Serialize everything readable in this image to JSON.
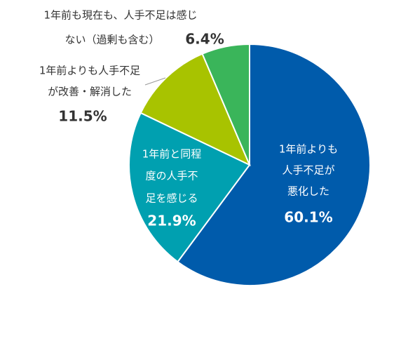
{
  "chart_data": {
    "type": "pie",
    "categories": [
      [
        "1年前よりも",
        "人手不足が",
        "悪化した"
      ],
      [
        "1年前と同程",
        "度の人手不",
        "足を感じる"
      ],
      [
        "1年前よりも人手不足",
        "が改善・解消した"
      ],
      [
        "1年前も現在も、人手不足は感じ",
        "ない（過剰も含む）"
      ]
    ],
    "values": [
      60.1,
      21.9,
      11.5,
      6.4
    ],
    "value_labels": [
      "60.1%",
      "21.9%",
      "11.5%",
      "6.4%"
    ],
    "colors": [
      "#005bab",
      "#00a0b0",
      "#a8c300",
      "#3ab55a"
    ]
  }
}
